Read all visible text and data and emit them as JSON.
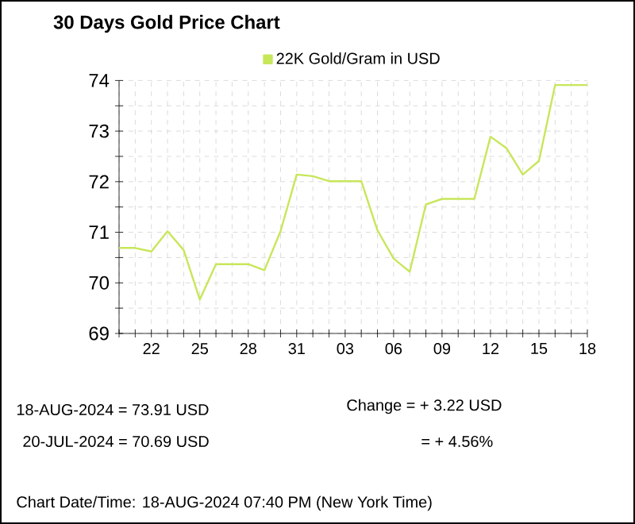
{
  "chart_data": {
    "type": "line",
    "title": "30 Days Gold Price Chart",
    "x": [
      "2024-07-20",
      "2024-07-21",
      "2024-07-22",
      "2024-07-23",
      "2024-07-24",
      "2024-07-25",
      "2024-07-26",
      "2024-07-27",
      "2024-07-28",
      "2024-07-29",
      "2024-07-30",
      "2024-07-31",
      "2024-08-01",
      "2024-08-02",
      "2024-08-03",
      "2024-08-04",
      "2024-08-05",
      "2024-08-06",
      "2024-08-07",
      "2024-08-08",
      "2024-08-09",
      "2024-08-10",
      "2024-08-11",
      "2024-08-12",
      "2024-08-13",
      "2024-08-14",
      "2024-08-15",
      "2024-08-16",
      "2024-08-17",
      "2024-08-18"
    ],
    "series": [
      {
        "name": "22K Gold/Gram  in USD",
        "color": "#c8e65a",
        "values": [
          70.69,
          70.69,
          70.62,
          71.02,
          70.65,
          69.67,
          70.37,
          70.37,
          70.37,
          70.25,
          71.02,
          72.14,
          72.11,
          72.01,
          72.01,
          72.01,
          71.04,
          70.48,
          70.22,
          71.55,
          71.66,
          71.66,
          71.66,
          72.89,
          72.66,
          72.14,
          72.41,
          73.91,
          73.91,
          73.91
        ]
      }
    ],
    "xlim": [
      "2024-07-20",
      "2024-08-18"
    ],
    "xticks": [
      {
        "value": "2024-07-20",
        "label": null
      },
      {
        "value": "2024-07-21",
        "label": null
      },
      {
        "value": "2024-07-22",
        "label": "22"
      },
      {
        "value": "2024-07-23",
        "label": null
      },
      {
        "value": "2024-07-24",
        "label": null
      },
      {
        "value": "2024-07-25",
        "label": "25"
      },
      {
        "value": "2024-07-26",
        "label": null
      },
      {
        "value": "2024-07-27",
        "label": null
      },
      {
        "value": "2024-07-28",
        "label": "28"
      },
      {
        "value": "2024-07-29",
        "label": null
      },
      {
        "value": "2024-07-30",
        "label": null
      },
      {
        "value": "2024-07-31",
        "label": "31"
      },
      {
        "value": "2024-08-01",
        "label": null
      },
      {
        "value": "2024-08-02",
        "label": null
      },
      {
        "value": "2024-08-03",
        "label": "03"
      },
      {
        "value": "2024-08-04",
        "label": null
      },
      {
        "value": "2024-08-05",
        "label": null
      },
      {
        "value": "2024-08-06",
        "label": "06"
      },
      {
        "value": "2024-08-07",
        "label": null
      },
      {
        "value": "2024-08-08",
        "label": null
      },
      {
        "value": "2024-08-09",
        "label": "09"
      },
      {
        "value": "2024-08-10",
        "label": null
      },
      {
        "value": "2024-08-11",
        "label": null
      },
      {
        "value": "2024-08-12",
        "label": "12"
      },
      {
        "value": "2024-08-13",
        "label": null
      },
      {
        "value": "2024-08-14",
        "label": null
      },
      {
        "value": "2024-08-15",
        "label": "15"
      },
      {
        "value": "2024-08-16",
        "label": null
      },
      {
        "value": "2024-08-17",
        "label": null
      },
      {
        "value": "2024-08-18",
        "label": "18"
      }
    ],
    "ylim": [
      69,
      74
    ],
    "yticks": [
      69,
      {
        "value": 69.5,
        "label": null
      },
      70,
      {
        "value": 70.5,
        "label": null
      },
      71,
      {
        "value": 71.5,
        "label": null
      },
      72,
      {
        "value": 72.5,
        "label": null
      },
      73,
      {
        "value": 73.5,
        "label": null
      },
      74
    ],
    "grid": true,
    "legend": "top",
    "marker": "none",
    "line_style": "solid",
    "annotations": [
      "18-AUG-2024 = 73.91 USD",
      "20-JUL-2024 = 70.69 USD",
      "Change   = + 3.22 USD",
      "= + 4.56%",
      "Chart Date/Time: 18-AUG-2024 07:40 PM (New York Time)"
    ]
  }
}
